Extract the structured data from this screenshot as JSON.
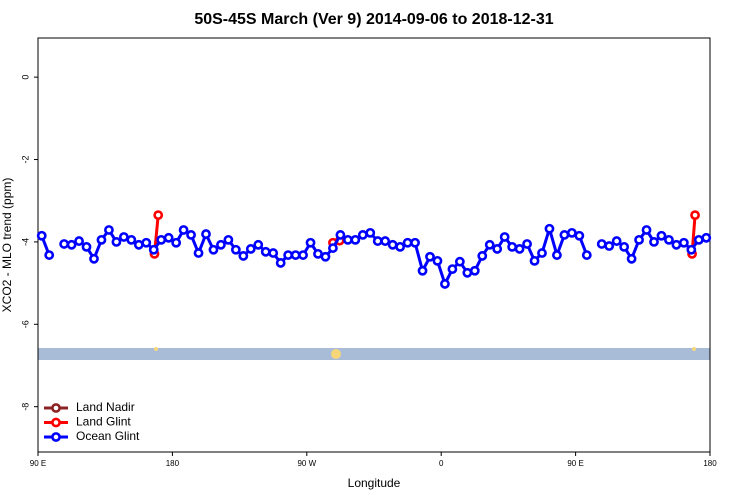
{
  "chart_data": {
    "type": "line",
    "title": "50S-45S March (Ver 9)   2014-09-06 to 2018-12-31",
    "xlabel": "Longitude",
    "ylabel": "XCO2 - MLO trend (ppm)",
    "xlim": [
      90,
      540
    ],
    "ylim": [
      -9.1,
      0.95
    ],
    "xticks": [
      {
        "value": 90,
        "label": "90 E"
      },
      180,
      {
        "value": 270,
        "label": "90 W"
      },
      {
        "value": 360,
        "label": "0"
      },
      {
        "value": 450,
        "label": "90 E"
      },
      {
        "value": 540,
        "label": "180"
      }
    ],
    "yticks": [
      0,
      -2,
      -4,
      -6,
      -8
    ],
    "legend": "bottom-left",
    "series": [
      {
        "name": "Land Nadir",
        "color": "#8b2323",
        "x": [],
        "values": []
      },
      {
        "name": "Land Glint",
        "color": "#ff0000",
        "x": [
          168,
          170.5,
          null,
          287.5,
          292,
          null,
          528,
          530
        ],
        "values": [
          -4.29,
          -3.35,
          null,
          -4.02,
          -3.97,
          null,
          -4.29,
          -3.35
        ]
      },
      {
        "name": "Ocean Glint",
        "color": "#0000ff",
        "x": [
          92.5,
          97.5,
          102.5,
          107.5,
          112.5,
          117.5,
          122.5,
          127.5,
          132.5,
          137.5,
          142.5,
          147.5,
          152.5,
          157.5,
          162.5,
          167.5,
          172.5,
          177.5,
          182.5,
          187.5,
          192.5,
          197.5,
          202.5,
          207.5,
          212.5,
          217.5,
          222.5,
          227.5,
          232.5,
          237.5,
          242.5,
          247.5,
          252.5,
          257.5,
          262.5,
          267.5,
          272.5,
          277.5,
          282.5,
          287.5,
          292.5,
          297.5,
          302.5,
          307.5,
          312.5,
          317.5,
          322.5,
          327.5,
          332.5,
          337.5,
          342.5,
          347.5,
          352.5,
          357.5,
          362.5,
          367.5,
          372.5,
          377.5,
          382.5,
          387.5,
          392.5,
          397.5,
          402.5,
          407.5,
          412.5,
          417.5,
          422.5,
          427.5,
          432.5,
          437.5,
          442.5,
          447.5,
          452.5,
          457.5,
          462.5,
          467.5,
          472.5,
          477.5,
          482.5,
          487.5,
          492.5,
          497.5,
          502.5,
          507.5,
          512.5,
          517.5,
          522.5,
          527.5,
          532.5,
          537.5
        ],
        "values": [
          -3.85,
          -4.32,
          null,
          -4.05,
          -4.07,
          -3.98,
          -4.12,
          -4.41,
          -3.95,
          -3.71,
          -4.0,
          -3.88,
          -3.95,
          -4.07,
          -4.02,
          -4.19,
          -3.95,
          -3.9,
          -4.02,
          -3.71,
          -3.83,
          -4.27,
          -3.81,
          -4.19,
          -4.07,
          -3.95,
          -4.19,
          -4.34,
          -4.17,
          -4.07,
          -4.24,
          -4.27,
          -4.51,
          -4.32,
          -4.32,
          -4.32,
          -4.02,
          -4.29,
          -4.36,
          -4.15,
          -3.83,
          -3.95,
          -3.95,
          -3.83,
          -3.78,
          -3.98,
          -3.98,
          -4.07,
          -4.12,
          -4.02,
          -4.02,
          -4.7,
          -4.36,
          -4.46,
          -5.02,
          -4.66,
          -4.48,
          -4.75,
          -4.7,
          -4.34,
          -4.07,
          -4.17,
          -3.88,
          -4.12,
          -4.17,
          -4.05,
          -4.46,
          -4.27,
          -3.68,
          -4.32,
          -3.83,
          -3.78,
          -3.85,
          -4.32,
          null,
          -4.05,
          -4.1,
          -3.98,
          -4.12,
          -4.41,
          -3.95,
          -3.71,
          -4.0,
          -3.85,
          -3.95,
          -4.07,
          -4.02,
          -4.19,
          -3.95,
          -3.9
        ]
      }
    ]
  }
}
